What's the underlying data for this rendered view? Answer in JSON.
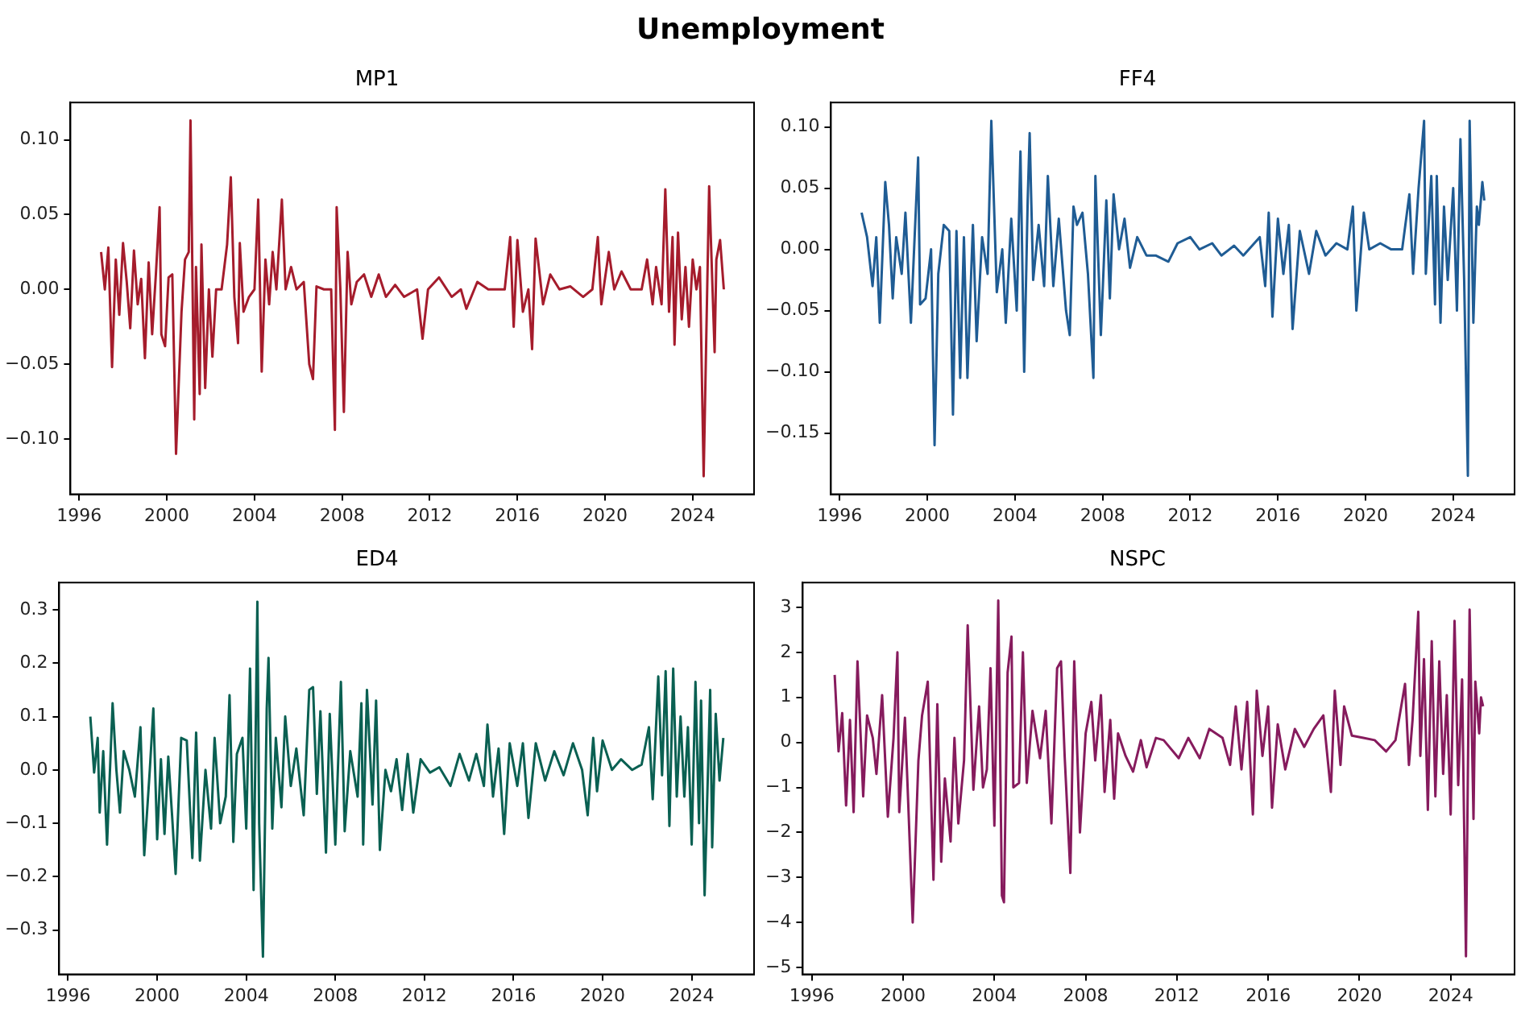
{
  "chart_data": [
    {
      "type": "other",
      "title": "Unemployment"
    },
    {
      "type": "line",
      "title": "MP1",
      "xlim": [
        1995.6,
        2026.8
      ],
      "xticks": [
        1996,
        2000,
        2004,
        2008,
        2012,
        2016,
        2020,
        2024
      ],
      "ylim": [
        -0.137,
        0.125
      ],
      "yticks": [
        {
          "value": -0.1,
          "label": "−0.10"
        },
        {
          "value": -0.05,
          "label": "−0.05"
        },
        {
          "value": 0,
          "label": "0.00"
        },
        {
          "value": 0.05,
          "label": "0.05"
        },
        {
          "value": 0.1,
          "label": "0.10"
        }
      ],
      "series": [
        {
          "color": "#a51c2c",
          "x": [
            1997.0,
            1997.17,
            1997.33,
            1997.5,
            1997.67,
            1997.83,
            1998.0,
            1998.17,
            1998.33,
            1998.5,
            1998.67,
            1998.83,
            1999.0,
            1999.17,
            1999.33,
            1999.5,
            1999.67,
            1999.75,
            1999.92,
            2000.08,
            2000.25,
            2000.42,
            2000.67,
            2000.83,
            2001.0,
            2001.08,
            2001.25,
            2001.33,
            2001.5,
            2001.58,
            2001.75,
            2001.92,
            2002.08,
            2002.25,
            2002.5,
            2002.75,
            2002.92,
            2003.08,
            2003.25,
            2003.33,
            2003.5,
            2003.75,
            2004.0,
            2004.17,
            2004.33,
            2004.5,
            2004.67,
            2004.83,
            2005.0,
            2005.25,
            2005.42,
            2005.67,
            2005.92,
            2006.25,
            2006.5,
            2006.67,
            2006.83,
            2007.17,
            2007.5,
            2007.67,
            2007.75,
            2007.92,
            2008.08,
            2008.25,
            2008.42,
            2008.67,
            2009.0,
            2009.33,
            2009.67,
            2010.0,
            2010.42,
            2010.83,
            2011.42,
            2011.67,
            2011.92,
            2012.42,
            2013.0,
            2013.42,
            2013.67,
            2014.17,
            2014.67,
            2015.42,
            2015.67,
            2015.83,
            2016.0,
            2016.25,
            2016.5,
            2016.67,
            2016.83,
            2017.17,
            2017.5,
            2017.92,
            2018.42,
            2019.0,
            2019.42,
            2019.67,
            2019.83,
            2020.17,
            2020.42,
            2020.75,
            2021.17,
            2021.67,
            2021.92,
            2022.17,
            2022.33,
            2022.58,
            2022.75,
            2022.92,
            2023.08,
            2023.17,
            2023.33,
            2023.5,
            2023.67,
            2023.83,
            2024.0,
            2024.17,
            2024.33,
            2024.5,
            2024.75,
            2025.0,
            2025.08,
            2025.25,
            2025.42
          ],
          "values": [
            0.025,
            0.0,
            0.028,
            -0.052,
            0.02,
            -0.017,
            0.031,
            0.005,
            -0.026,
            0.026,
            -0.01,
            0.007,
            -0.046,
            0.018,
            -0.03,
            0.01,
            0.055,
            -0.03,
            -0.038,
            0.008,
            0.01,
            -0.11,
            -0.015,
            0.02,
            0.025,
            0.113,
            -0.087,
            0.015,
            -0.07,
            0.03,
            -0.066,
            0.0,
            -0.045,
            0.0,
            0.0,
            0.03,
            0.075,
            -0.005,
            -0.036,
            0.031,
            -0.015,
            -0.005,
            0.0,
            0.06,
            -0.055,
            0.02,
            -0.01,
            0.025,
            0.0,
            0.06,
            0.0,
            0.015,
            0.0,
            0.005,
            -0.05,
            -0.06,
            0.002,
            0.0,
            0.0,
            -0.094,
            0.055,
            0.0,
            -0.082,
            0.025,
            -0.01,
            0.005,
            0.01,
            -0.005,
            0.01,
            -0.005,
            0.003,
            -0.005,
            0.0,
            -0.033,
            0.0,
            0.008,
            -0.005,
            0.0,
            -0.013,
            0.005,
            0.0,
            0.0,
            0.035,
            -0.025,
            0.033,
            -0.015,
            0.0,
            -0.04,
            0.034,
            -0.01,
            0.01,
            0.0,
            0.002,
            -0.005,
            0.0,
            0.035,
            -0.01,
            0.025,
            0.0,
            0.012,
            0.0,
            0.0,
            0.02,
            -0.01,
            0.015,
            -0.01,
            0.067,
            -0.015,
            0.035,
            -0.037,
            0.038,
            -0.02,
            0.015,
            -0.025,
            0.02,
            0.0,
            0.015,
            -0.125,
            0.069,
            -0.042,
            0.02,
            0.033,
            0.0
          ]
        }
      ]
    },
    {
      "type": "line",
      "title": "FF4",
      "xlim": [
        1995.6,
        2026.8
      ],
      "xticks": [
        1996,
        2000,
        2004,
        2008,
        2012,
        2016,
        2020,
        2024
      ],
      "ylim": [
        -0.2,
        0.12
      ],
      "yticks": [
        {
          "value": -0.15,
          "label": "−0.15"
        },
        {
          "value": -0.1,
          "label": "−0.10"
        },
        {
          "value": -0.05,
          "label": "−0.05"
        },
        {
          "value": 0,
          "label": "0.00"
        },
        {
          "value": 0.05,
          "label": "0.05"
        },
        {
          "value": 0.1,
          "label": "0.10"
        }
      ],
      "series": [
        {
          "color": "#1f5c94",
          "x": [
            1997.0,
            1997.25,
            1997.5,
            1997.67,
            1997.83,
            1998.08,
            1998.25,
            1998.42,
            1998.58,
            1998.83,
            1999.0,
            1999.25,
            1999.42,
            1999.58,
            1999.67,
            1999.92,
            2000.17,
            2000.33,
            2000.5,
            2000.75,
            2001.0,
            2001.17,
            2001.33,
            2001.5,
            2001.67,
            2001.83,
            2002.08,
            2002.25,
            2002.5,
            2002.75,
            2002.92,
            2003.17,
            2003.42,
            2003.58,
            2003.83,
            2004.08,
            2004.25,
            2004.42,
            2004.58,
            2004.67,
            2004.83,
            2005.08,
            2005.33,
            2005.5,
            2005.75,
            2006.0,
            2006.33,
            2006.5,
            2006.67,
            2006.83,
            2007.08,
            2007.33,
            2007.58,
            2007.67,
            2007.92,
            2008.17,
            2008.33,
            2008.5,
            2008.75,
            2009.0,
            2009.25,
            2009.58,
            2010.0,
            2010.42,
            2011.0,
            2011.42,
            2012.0,
            2012.42,
            2013.0,
            2013.42,
            2014.0,
            2014.42,
            2015.17,
            2015.42,
            2015.58,
            2015.75,
            2016.0,
            2016.25,
            2016.5,
            2016.67,
            2017.0,
            2017.42,
            2017.75,
            2018.17,
            2018.67,
            2019.17,
            2019.42,
            2019.58,
            2019.92,
            2020.17,
            2020.67,
            2021.17,
            2021.67,
            2022.0,
            2022.17,
            2022.42,
            2022.67,
            2022.75,
            2023.0,
            2023.17,
            2023.25,
            2023.42,
            2023.58,
            2023.75,
            2024.0,
            2024.17,
            2024.33,
            2024.5,
            2024.67,
            2024.75,
            2024.92,
            2025.08,
            2025.17,
            2025.33,
            2025.42
          ],
          "values": [
            0.03,
            0.01,
            -0.03,
            0.01,
            -0.06,
            0.055,
            0.02,
            -0.04,
            0.01,
            -0.02,
            0.03,
            -0.06,
            0.01,
            0.075,
            -0.045,
            -0.04,
            0.0,
            -0.16,
            -0.02,
            0.02,
            0.015,
            -0.135,
            0.015,
            -0.105,
            0.01,
            -0.105,
            0.02,
            -0.075,
            0.01,
            -0.02,
            0.105,
            -0.035,
            0.0,
            -0.06,
            0.025,
            -0.05,
            0.08,
            -0.1,
            0.04,
            0.095,
            -0.025,
            0.02,
            -0.03,
            0.06,
            -0.03,
            0.025,
            -0.05,
            -0.07,
            0.035,
            0.02,
            0.03,
            -0.02,
            -0.105,
            0.06,
            -0.07,
            0.04,
            -0.04,
            0.045,
            0.0,
            0.025,
            -0.015,
            0.01,
            -0.005,
            -0.005,
            -0.01,
            0.005,
            0.01,
            0.0,
            0.005,
            -0.005,
            0.003,
            -0.005,
            0.01,
            -0.03,
            0.03,
            -0.055,
            0.025,
            -0.02,
            0.02,
            -0.065,
            0.015,
            -0.02,
            0.015,
            -0.005,
            0.005,
            0.0,
            0.035,
            -0.05,
            0.03,
            0.0,
            0.005,
            0.0,
            0.0,
            0.045,
            -0.02,
            0.05,
            0.105,
            -0.02,
            0.06,
            -0.045,
            0.06,
            -0.06,
            0.035,
            -0.025,
            0.05,
            -0.05,
            0.09,
            -0.025,
            -0.185,
            0.105,
            -0.06,
            0.035,
            0.02,
            0.055,
            0.04
          ]
        }
      ]
    },
    {
      "type": "line",
      "title": "ED4",
      "xlim": [
        1995.6,
        2026.8
      ],
      "xticks": [
        1996,
        2000,
        2004,
        2008,
        2012,
        2016,
        2020,
        2024
      ],
      "ylim": [
        -0.383,
        0.351
      ],
      "yticks": [
        {
          "value": -0.3,
          "label": "−0.3"
        },
        {
          "value": -0.2,
          "label": "−0.2"
        },
        {
          "value": -0.1,
          "label": "−0.1"
        },
        {
          "value": 0,
          "label": "0.0"
        },
        {
          "value": 0.1,
          "label": "0.1"
        },
        {
          "value": 0.2,
          "label": "0.2"
        },
        {
          "value": 0.3,
          "label": "0.3"
        }
      ],
      "series": [
        {
          "color": "#0a6052",
          "x": [
            1997.0,
            1997.17,
            1997.33,
            1997.42,
            1997.58,
            1997.75,
            1998.0,
            1998.17,
            1998.33,
            1998.5,
            1998.75,
            1999.0,
            1999.25,
            1999.42,
            1999.67,
            1999.83,
            2000.0,
            2000.17,
            2000.33,
            2000.5,
            2000.67,
            2000.83,
            2001.08,
            2001.33,
            2001.58,
            2001.75,
            2001.92,
            2002.17,
            2002.42,
            2002.58,
            2002.83,
            2003.08,
            2003.25,
            2003.42,
            2003.58,
            2003.83,
            2004.0,
            2004.17,
            2004.33,
            2004.5,
            2004.58,
            2004.75,
            2004.92,
            2005.0,
            2005.17,
            2005.33,
            2005.58,
            2005.75,
            2006.0,
            2006.25,
            2006.58,
            2006.83,
            2007.0,
            2007.17,
            2007.33,
            2007.58,
            2007.75,
            2008.0,
            2008.25,
            2008.42,
            2008.67,
            2009.0,
            2009.17,
            2009.25,
            2009.42,
            2009.67,
            2009.83,
            2010.0,
            2010.25,
            2010.5,
            2010.75,
            2011.0,
            2011.25,
            2011.5,
            2011.83,
            2012.25,
            2012.67,
            2013.17,
            2013.58,
            2014.0,
            2014.33,
            2014.67,
            2014.83,
            2015.08,
            2015.33,
            2015.58,
            2015.83,
            2016.17,
            2016.42,
            2016.67,
            2017.0,
            2017.42,
            2017.83,
            2018.25,
            2018.67,
            2019.08,
            2019.33,
            2019.58,
            2019.75,
            2020.0,
            2020.42,
            2020.83,
            2021.33,
            2021.75,
            2022.08,
            2022.25,
            2022.5,
            2022.67,
            2022.83,
            2023.0,
            2023.17,
            2023.33,
            2023.5,
            2023.67,
            2023.83,
            2024.0,
            2024.17,
            2024.33,
            2024.42,
            2024.58,
            2024.83,
            2024.92,
            2025.08,
            2025.25,
            2025.42
          ],
          "values": [
            0.1,
            -0.005,
            0.06,
            -0.08,
            0.035,
            -0.14,
            0.125,
            0.0,
            -0.08,
            0.035,
            0.0,
            -0.05,
            0.08,
            -0.16,
            0.0,
            0.115,
            -0.13,
            0.02,
            -0.12,
            0.025,
            -0.085,
            -0.195,
            0.06,
            0.055,
            -0.165,
            0.07,
            -0.17,
            0.0,
            -0.11,
            0.06,
            -0.1,
            -0.05,
            0.14,
            -0.135,
            0.03,
            0.06,
            -0.11,
            0.19,
            -0.225,
            0.315,
            -0.1,
            -0.35,
            0.115,
            0.21,
            -0.11,
            0.06,
            -0.07,
            0.1,
            -0.03,
            0.04,
            -0.085,
            0.15,
            0.155,
            -0.045,
            0.11,
            -0.155,
            0.105,
            -0.14,
            0.165,
            -0.115,
            0.035,
            -0.05,
            0.125,
            -0.14,
            0.15,
            -0.065,
            0.13,
            -0.15,
            0.0,
            -0.04,
            0.02,
            -0.075,
            0.03,
            -0.08,
            0.02,
            -0.005,
            0.005,
            -0.03,
            0.03,
            -0.02,
            0.03,
            -0.03,
            0.085,
            -0.05,
            0.04,
            -0.12,
            0.05,
            -0.03,
            0.05,
            -0.09,
            0.05,
            -0.02,
            0.035,
            -0.01,
            0.05,
            0.0,
            -0.085,
            0.06,
            -0.04,
            0.055,
            0.0,
            0.02,
            0.0,
            0.01,
            0.08,
            -0.055,
            0.175,
            -0.01,
            0.185,
            -0.105,
            0.19,
            -0.05,
            0.1,
            -0.05,
            0.08,
            -0.14,
            0.165,
            -0.1,
            0.13,
            -0.235,
            0.15,
            -0.145,
            0.105,
            -0.02,
            0.06
          ]
        }
      ]
    },
    {
      "type": "line",
      "title": "NSPC",
      "xlim": [
        1995.6,
        2026.8
      ],
      "xticks": [
        1996,
        2000,
        2004,
        2008,
        2012,
        2016,
        2020,
        2024
      ],
      "ylim": [
        -5.15,
        3.55
      ],
      "yticks": [
        {
          "value": -5,
          "label": "−5"
        },
        {
          "value": -4,
          "label": "−4"
        },
        {
          "value": -3,
          "label": "−3"
        },
        {
          "value": -2,
          "label": "−2"
        },
        {
          "value": -1,
          "label": "−1"
        },
        0,
        1,
        2,
        3
      ],
      "series": [
        {
          "color": "#861b5d",
          "x": [
            1997.0,
            1997.17,
            1997.33,
            1997.5,
            1997.67,
            1997.83,
            1998.0,
            1998.25,
            1998.42,
            1998.67,
            1998.83,
            1999.08,
            1999.33,
            1999.58,
            1999.75,
            1999.83,
            2000.08,
            2000.25,
            2000.42,
            2000.67,
            2000.83,
            2001.08,
            2001.33,
            2001.5,
            2001.67,
            2001.83,
            2002.08,
            2002.25,
            2002.42,
            2002.67,
            2002.83,
            2003.08,
            2003.33,
            2003.5,
            2003.67,
            2003.83,
            2004.0,
            2004.17,
            2004.33,
            2004.42,
            2004.58,
            2004.75,
            2004.83,
            2005.08,
            2005.25,
            2005.42,
            2005.67,
            2006.0,
            2006.25,
            2006.5,
            2006.75,
            2006.92,
            2007.08,
            2007.33,
            2007.5,
            2007.75,
            2008.0,
            2008.25,
            2008.42,
            2008.67,
            2008.83,
            2009.08,
            2009.25,
            2009.42,
            2009.75,
            2010.08,
            2010.42,
            2010.67,
            2011.08,
            2011.42,
            2012.08,
            2012.5,
            2013.0,
            2013.42,
            2014.0,
            2014.33,
            2014.58,
            2014.83,
            2015.08,
            2015.33,
            2015.5,
            2015.75,
            2016.0,
            2016.17,
            2016.42,
            2016.75,
            2017.17,
            2017.58,
            2018.0,
            2018.42,
            2018.75,
            2018.92,
            2019.17,
            2019.33,
            2019.67,
            2020.17,
            2020.67,
            2021.17,
            2021.58,
            2022.0,
            2022.17,
            2022.33,
            2022.58,
            2022.67,
            2022.83,
            2023.0,
            2023.17,
            2023.33,
            2023.5,
            2023.67,
            2023.83,
            2024.0,
            2024.17,
            2024.33,
            2024.5,
            2024.67,
            2024.83,
            2025.0,
            2025.08,
            2025.25,
            2025.33,
            2025.42
          ],
          "values": [
            1.5,
            -0.2,
            0.65,
            -1.4,
            0.5,
            -1.55,
            1.8,
            -1.2,
            0.6,
            0.1,
            -0.7,
            1.05,
            -1.65,
            0.1,
            2.0,
            -1.55,
            0.55,
            -1.7,
            -4.0,
            -0.4,
            0.6,
            1.35,
            -3.05,
            0.85,
            -2.65,
            -0.8,
            -2.2,
            0.1,
            -1.8,
            -0.4,
            2.6,
            -1.05,
            0.8,
            -1.0,
            -0.6,
            1.65,
            -1.85,
            3.15,
            -3.4,
            -3.55,
            1.55,
            2.35,
            -1.0,
            -0.9,
            2.0,
            -0.9,
            0.7,
            -0.35,
            0.7,
            -1.8,
            1.65,
            1.8,
            -0.3,
            -2.9,
            1.8,
            -2.0,
            0.2,
            0.9,
            -0.4,
            1.05,
            -1.1,
            0.5,
            -1.25,
            0.2,
            -0.3,
            -0.65,
            0.05,
            -0.55,
            0.1,
            0.05,
            -0.35,
            0.1,
            -0.35,
            0.3,
            0.1,
            -0.5,
            0.8,
            -0.6,
            0.9,
            -1.6,
            1.15,
            -0.3,
            0.8,
            -1.45,
            0.4,
            -0.6,
            0.3,
            -0.1,
            0.3,
            0.6,
            -1.1,
            1.15,
            -0.5,
            0.8,
            0.15,
            0.1,
            0.05,
            -0.2,
            0.05,
            1.3,
            -0.5,
            0.5,
            2.9,
            -0.3,
            1.85,
            -1.5,
            2.25,
            -1.2,
            1.8,
            -0.7,
            1.05,
            -1.6,
            2.7,
            -0.95,
            1.4,
            -4.75,
            2.95,
            -1.7,
            1.35,
            0.2,
            1.0,
            0.8
          ]
        }
      ]
    }
  ]
}
